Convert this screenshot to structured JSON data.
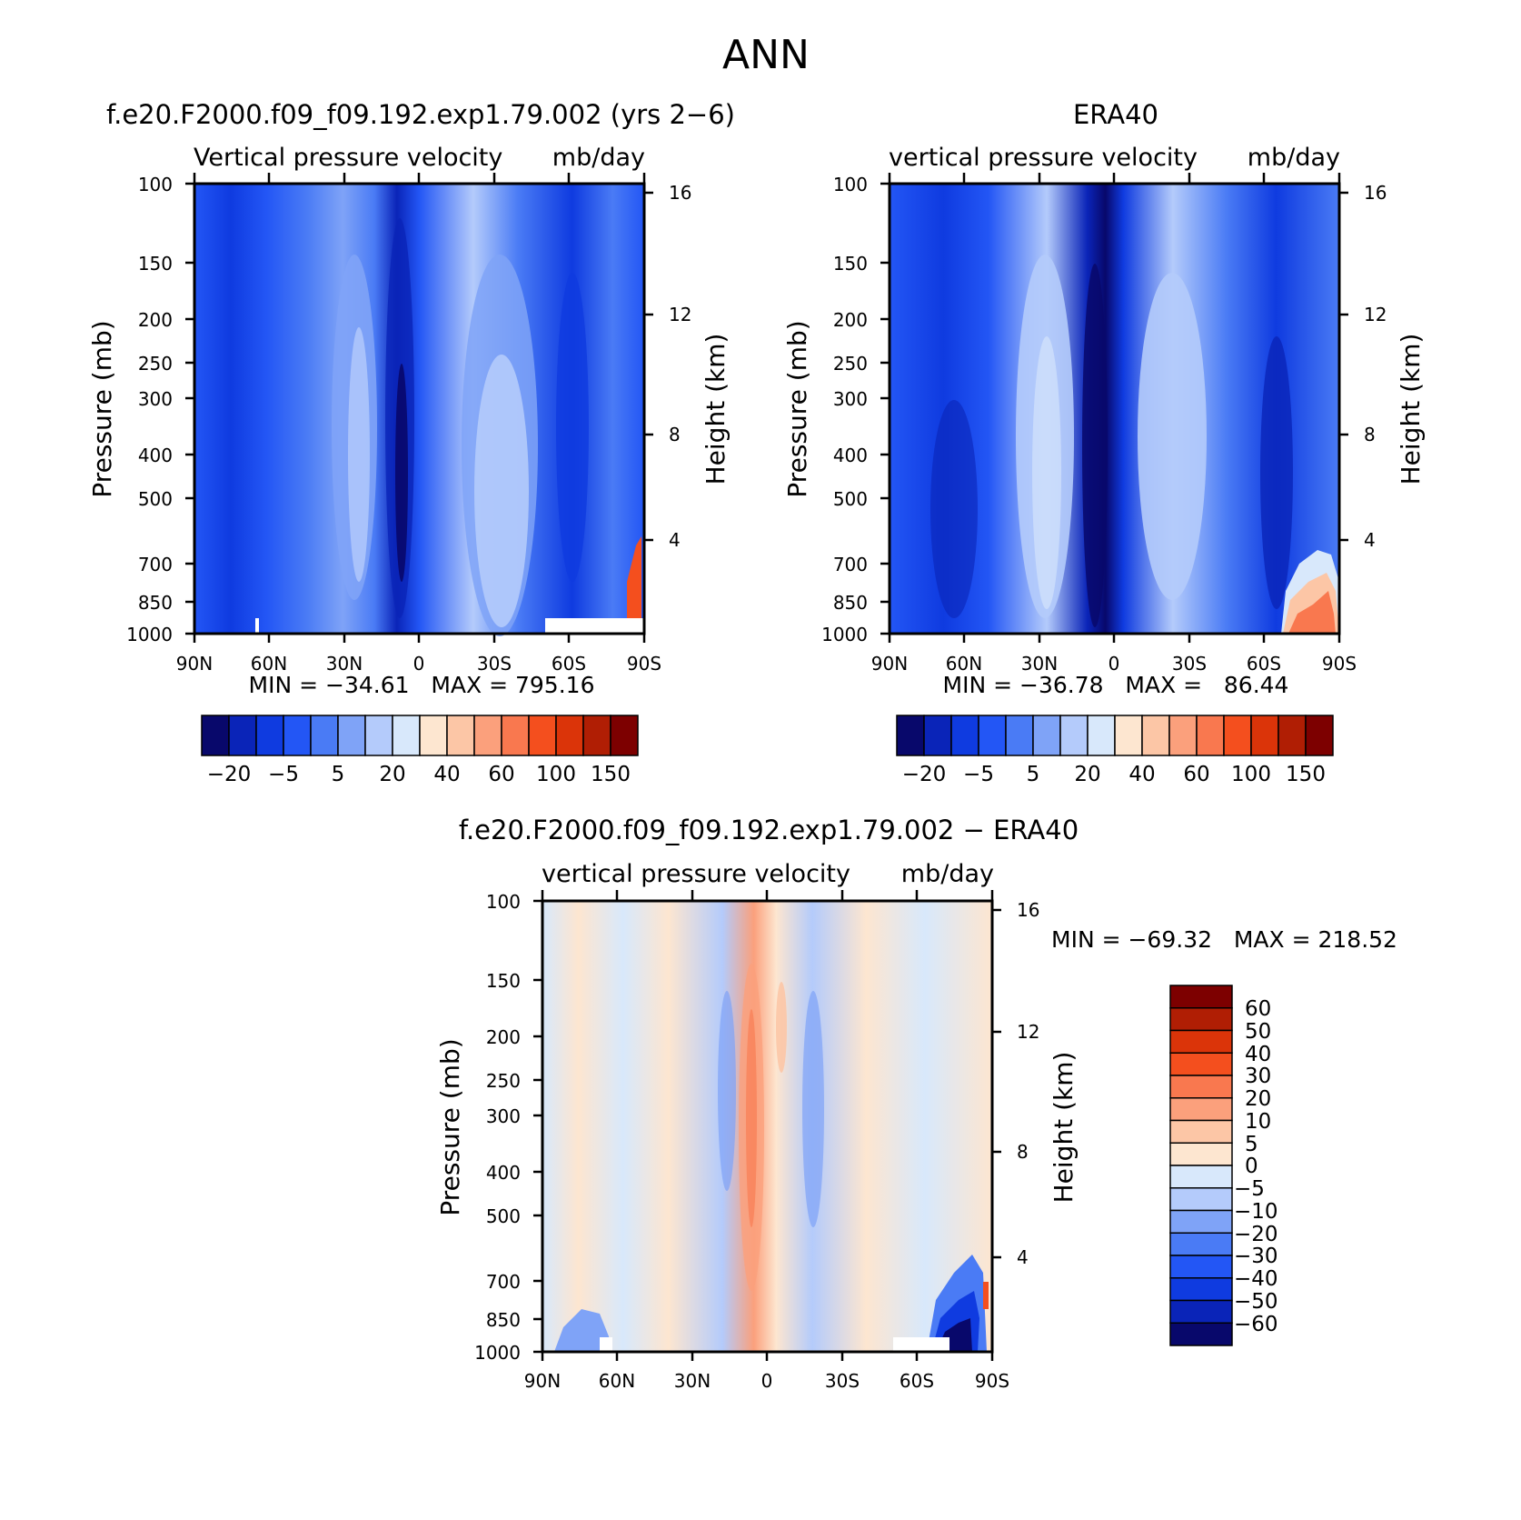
{
  "page_title": "ANN",
  "panels": [
    {
      "title": "f.e20.F2000.f09_f09.192.exp1.79.002 (yrs 2−6)",
      "subtitle_left": "Vertical pressure velocity",
      "subtitle_right": "mb/day",
      "ylabel": "Pressure (mb)",
      "ylabel_right": "Height (km)",
      "stats": "MIN = −34.61   MAX = 795.16"
    },
    {
      "title": "ERA40",
      "subtitle_left": "vertical pressure velocity",
      "subtitle_right": "mb/day",
      "ylabel": "Pressure (mb)",
      "ylabel_right": "Height (km)",
      "stats": "MIN = −36.78   MAX =   86.44"
    },
    {
      "title": "f.e20.F2000.f09_f09.192.exp1.79.002 − ERA40",
      "subtitle_left": "vertical pressure velocity",
      "subtitle_right": "mb/day",
      "ylabel": "Pressure (mb)",
      "ylabel_right": "Height (km)",
      "stats": "MIN = −69.32   MAX = 218.52"
    }
  ],
  "axes": {
    "x_ticks": [
      "90N",
      "60N",
      "30N",
      "0",
      "30S",
      "60S",
      "90S"
    ],
    "y_ticks": [
      "100",
      "150",
      "200",
      "250",
      "300",
      "400",
      "500",
      "700",
      "850",
      "1000"
    ],
    "y_right_ticks": [
      "16",
      "12",
      "8",
      "4"
    ]
  },
  "colorbars": {
    "top_labels": [
      "−20",
      "−5",
      "5",
      "20",
      "40",
      "60",
      "100",
      "150"
    ],
    "top_colors": [
      "#08086b",
      "#0a24b8",
      "#0f3be0",
      "#2356f5",
      "#4a7bf5",
      "#7fa3f7",
      "#b4cbfb",
      "#d8e8fb",
      "#fde6d0",
      "#fcc6a6",
      "#fba07c",
      "#f9784f",
      "#f44f1e",
      "#db3409",
      "#b01e04",
      "#7d0000"
    ],
    "diff_labels": [
      "60",
      "50",
      "40",
      "30",
      "20",
      "10",
      "5",
      "0",
      "−5",
      "−10",
      "−20",
      "−30",
      "−40",
      "−50",
      "−60"
    ],
    "diff_colors": [
      "#7d0000",
      "#b01e04",
      "#db3409",
      "#f44f1e",
      "#f9784f",
      "#fba07c",
      "#fcc6a6",
      "#fde6d0",
      "#d8e8fb",
      "#b4cbfb",
      "#7fa3f7",
      "#4a7bf5",
      "#2356f5",
      "#0f3be0",
      "#0a24b8",
      "#08086b"
    ]
  },
  "chart_data": [
    {
      "type": "heatmap",
      "title": "f.e20.F2000.f09_f09.192.exp1.79.002 (yrs 2−6)",
      "xlabel": "",
      "ylabel": "Pressure (mb)",
      "ylabel_right": "Height (km)",
      "x_categories": [
        "90N",
        "60N",
        "30N",
        "0",
        "30S",
        "60S",
        "90S"
      ],
      "y_levels_mb": [
        100,
        150,
        200,
        250,
        300,
        400,
        500,
        700,
        850,
        1000
      ],
      "y_right_km": [
        16,
        12,
        8,
        4
      ],
      "units": "mb/day",
      "min": -34.61,
      "max": 795.16,
      "color_levels": [
        -20,
        -5,
        5,
        20,
        40,
        60,
        100,
        150
      ]
    },
    {
      "type": "heatmap",
      "title": "ERA40",
      "xlabel": "",
      "ylabel": "Pressure (mb)",
      "ylabel_right": "Height (km)",
      "x_categories": [
        "90N",
        "60N",
        "30N",
        "0",
        "30S",
        "60S",
        "90S"
      ],
      "y_levels_mb": [
        100,
        150,
        200,
        250,
        300,
        400,
        500,
        700,
        850,
        1000
      ],
      "y_right_km": [
        16,
        12,
        8,
        4
      ],
      "units": "mb/day",
      "min": -36.78,
      "max": 86.44,
      "color_levels": [
        -20,
        -5,
        5,
        20,
        40,
        60,
        100,
        150
      ]
    },
    {
      "type": "heatmap",
      "title": "f.e20.F2000.f09_f09.192.exp1.79.002 − ERA40",
      "xlabel": "",
      "ylabel": "Pressure (mb)",
      "ylabel_right": "Height (km)",
      "x_categories": [
        "90N",
        "60N",
        "30N",
        "0",
        "30S",
        "60S",
        "90S"
      ],
      "y_levels_mb": [
        100,
        150,
        200,
        250,
        300,
        400,
        500,
        700,
        850,
        1000
      ],
      "y_right_km": [
        16,
        12,
        8,
        4
      ],
      "units": "mb/day",
      "min": -69.32,
      "max": 218.52,
      "color_levels": [
        -60,
        -50,
        -40,
        -30,
        -20,
        -10,
        -5,
        0,
        5,
        10,
        20,
        30,
        40,
        50,
        60
      ]
    }
  ]
}
